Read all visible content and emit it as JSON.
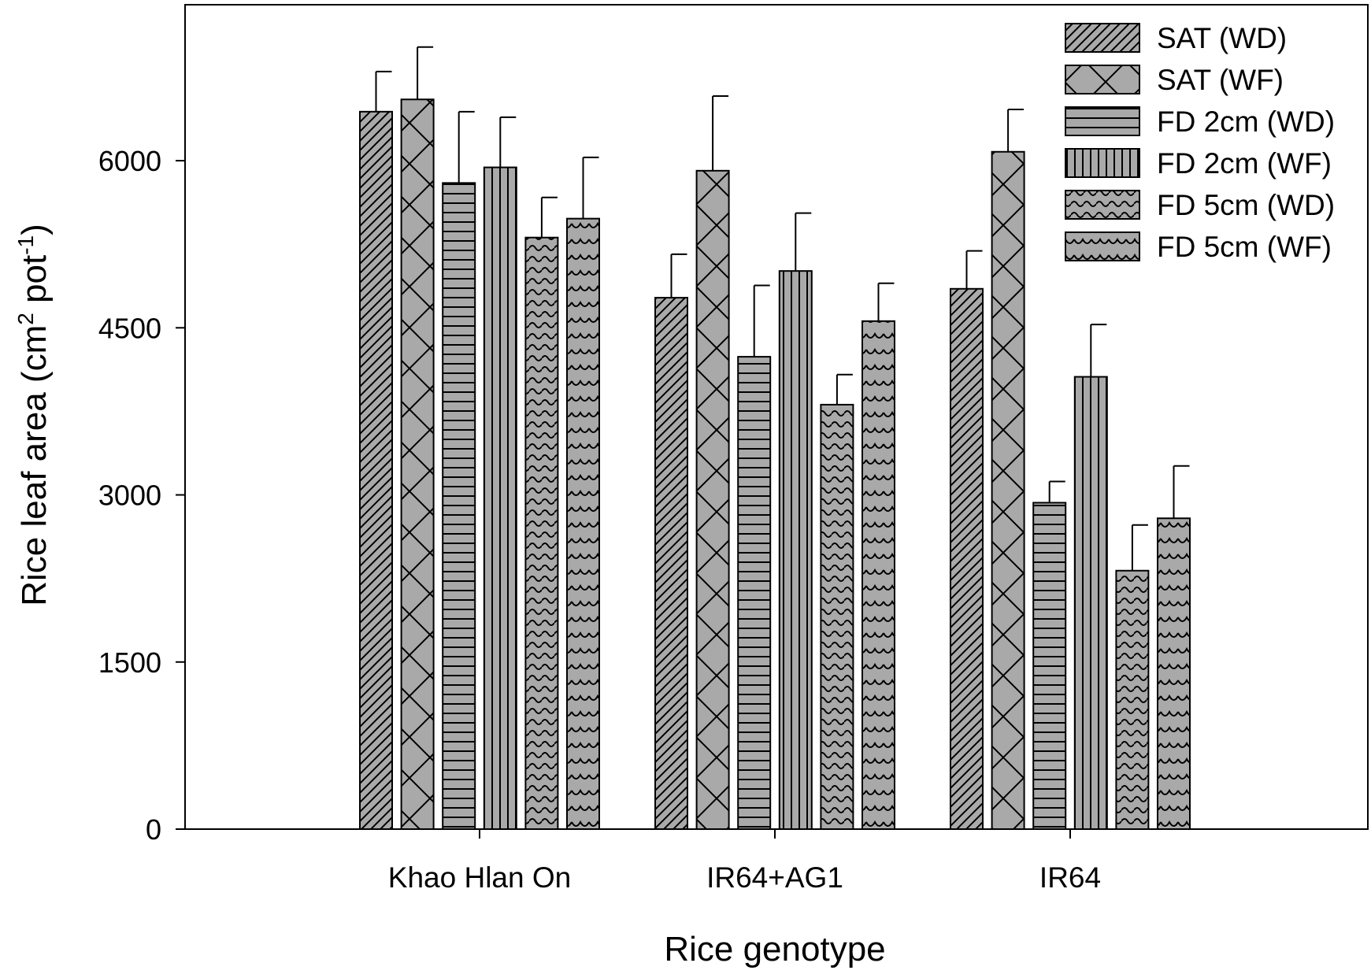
{
  "chart_data": {
    "type": "bar",
    "title": "",
    "xlabel": "Rice genotype",
    "ylabel": {
      "main": "Rice leaf area (cm",
      "sup1": "2",
      "mid": " pot",
      "sup2": "-1",
      "end": ")"
    },
    "ylim": [
      0,
      7400
    ],
    "yticks": [
      0,
      1500,
      3000,
      4500,
      6000
    ],
    "categories": [
      "Khao Hlan On",
      "IR64+AG1",
      "IR64"
    ],
    "legend_position": "top-right",
    "grid": false,
    "bar_color": "#a9a9a9",
    "series": [
      {
        "name": "SAT (WD)",
        "pattern": "diagonal",
        "values": [
          6440,
          4770,
          4850
        ],
        "errors": [
          360,
          390,
          340
        ]
      },
      {
        "name": "SAT (WF)",
        "pattern": "crosshatch",
        "values": [
          6550,
          5910,
          6080
        ],
        "errors": [
          470,
          670,
          380
        ]
      },
      {
        "name": "FD 2cm (WD)",
        "pattern": "horizontal",
        "values": [
          5800,
          4240,
          2930
        ],
        "errors": [
          640,
          640,
          190
        ]
      },
      {
        "name": "FD 2cm (WF)",
        "pattern": "vertical",
        "values": [
          5940,
          5010,
          4060
        ],
        "errors": [
          450,
          520,
          470
        ]
      },
      {
        "name": "FD 5cm (WD)",
        "pattern": "wave",
        "values": [
          5310,
          3810,
          2320
        ],
        "errors": [
          360,
          270,
          410
        ]
      },
      {
        "name": "FD 5cm (WF)",
        "pattern": "scallop",
        "values": [
          5480,
          4560,
          2790
        ],
        "errors": [
          550,
          340,
          470
        ]
      }
    ]
  }
}
